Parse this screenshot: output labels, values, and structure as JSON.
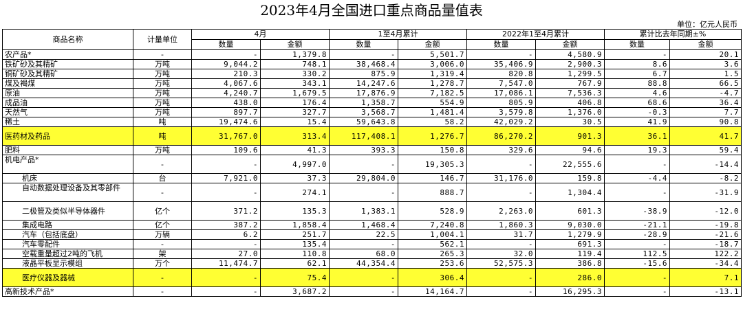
{
  "title": "2023年4月全国进口重点商品量值表",
  "unit": "单位：亿元人民币",
  "headers": {
    "name": "商品名称",
    "unit": "计量单位",
    "g1": "4月",
    "g2": "1至4月累计",
    "g3": "2022年1至4月累计",
    "g4": "累计比去年同期±%",
    "qty": "数量",
    "amt": "金额"
  },
  "rows": [
    {
      "name": "农产品*",
      "unit": "-",
      "q1": "-",
      "a1": "1,379.8",
      "q2": "-",
      "a2": "5,501.7",
      "q3": "-",
      "a3": "4,580.9",
      "q4": "-",
      "a4": "20.1"
    },
    {
      "name": "铁矿砂及其精矿",
      "unit": "万吨",
      "q1": "9,044.2",
      "a1": "748.1",
      "q2": "38,468.4",
      "a2": "3,006.0",
      "q3": "35,406.9",
      "a3": "2,900.3",
      "q4": "8.6",
      "a4": "3.6"
    },
    {
      "name": "铜矿砂及其精矿",
      "unit": "万吨",
      "q1": "210.3",
      "a1": "330.2",
      "q2": "875.9",
      "a2": "1,319.4",
      "q3": "820.8",
      "a3": "1,299.5",
      "q4": "6.7",
      "a4": "1.5"
    },
    {
      "name": "煤及褐煤",
      "unit": "万吨",
      "q1": "4,067.6",
      "a1": "343.1",
      "q2": "14,247.6",
      "a2": "1,278.7",
      "q3": "7,547.0",
      "a3": "767.9",
      "q4": "88.8",
      "a4": "66.5"
    },
    {
      "name": "原油",
      "unit": "万吨",
      "q1": "4,240.7",
      "a1": "1,679.5",
      "q2": "17,876.9",
      "a2": "7,182.5",
      "q3": "17,086.1",
      "a3": "7,536.3",
      "q4": "4.6",
      "a4": "-4.7"
    },
    {
      "name": "成品油",
      "unit": "万吨",
      "q1": "438.0",
      "a1": "176.4",
      "q2": "1,358.7",
      "a2": "554.9",
      "q3": "805.9",
      "a3": "406.8",
      "q4": "68.6",
      "a4": "36.4"
    },
    {
      "name": "天然气",
      "unit": "万吨",
      "q1": "897.7",
      "a1": "327.7",
      "q2": "3,568.7",
      "a2": "1,481.4",
      "q3": "3,579.8",
      "a3": "1,376.0",
      "q4": "-0.3",
      "a4": "7.7"
    },
    {
      "name": "稀土",
      "unit": "吨",
      "q1": "19,474.6",
      "a1": "15.4",
      "q2": "59,643.8",
      "a2": "58.2",
      "q3": "42,029.2",
      "a3": "30.5",
      "q4": "41.9",
      "a4": "90.8"
    },
    {
      "name": "医药材及药品",
      "unit": "吨",
      "q1": "31,767.0",
      "a1": "313.4",
      "q2": "117,408.1",
      "a2": "1,276.7",
      "q3": "86,270.2",
      "a3": "901.3",
      "q4": "36.1",
      "a4": "41.7"
    },
    {
      "name": "肥料",
      "unit": "万吨",
      "q1": "109.6",
      "a1": "41.3",
      "q2": "393.3",
      "a2": "150.8",
      "q3": "329.6",
      "a3": "94.6",
      "q4": "19.3",
      "a4": "59.4"
    },
    {
      "name": "机电产品*",
      "unit": "-",
      "q1": "-",
      "a1": "4,997.0",
      "q2": "-",
      "a2": "19,305.3",
      "q3": "-",
      "a3": "22,555.6",
      "q4": "-",
      "a4": "-14.4"
    },
    {
      "name": "机床",
      "unit": "台",
      "q1": "7,921.0",
      "a1": "37.3",
      "q2": "29,804.0",
      "a2": "146.7",
      "q3": "31,176.0",
      "a3": "159.8",
      "q4": "-4.4",
      "a4": "-8.2"
    },
    {
      "name": "自动数据处理设备及其零部件",
      "unit": "-",
      "q1": "-",
      "a1": "274.1",
      "q2": "-",
      "a2": "888.7",
      "q3": "-",
      "a3": "1,304.4",
      "q4": "-",
      "a4": "-31.9"
    },
    {
      "name": "二极管及类似半导体器件",
      "unit": "亿个",
      "q1": "371.2",
      "a1": "135.3",
      "q2": "1,383.1",
      "a2": "528.9",
      "q3": "2,263.0",
      "a3": "601.3",
      "q4": "-38.9",
      "a4": "-12.0"
    },
    {
      "name": "集成电路",
      "unit": "亿个",
      "q1": "387.2",
      "a1": "1,858.4",
      "q2": "1,468.4",
      "a2": "7,240.8",
      "q3": "1,860.3",
      "a3": "9,030.0",
      "q4": "-21.1",
      "a4": "-19.8"
    },
    {
      "name": "汽车（包括底盘）",
      "unit": "万辆",
      "q1": "6.2",
      "a1": "251.7",
      "q2": "22.5",
      "a2": "1,004.1",
      "q3": "31.7",
      "a3": "1,279.9",
      "q4": "-28.9",
      "a4": "-21.6"
    },
    {
      "name": "汽车零配件",
      "unit": "-",
      "q1": "-",
      "a1": "135.4",
      "q2": "-",
      "a2": "562.1",
      "q3": "-",
      "a3": "691.3",
      "q4": "-",
      "a4": "-18.7"
    },
    {
      "name": "空载重量超过2吨的飞机",
      "unit": "架",
      "q1": "27.0",
      "a1": "110.8",
      "q2": "68.0",
      "a2": "265.3",
      "q3": "32.0",
      "a3": "119.4",
      "q4": "112.5",
      "a4": "122.2"
    },
    {
      "name": "液晶平板显示模组",
      "unit": "万个",
      "q1": "11,474.7",
      "a1": "62.1",
      "q2": "44,354.4",
      "a2": "253.6",
      "q3": "52,575.3",
      "a3": "386.8",
      "q4": "-15.6",
      "a4": "-34.4"
    },
    {
      "name": "医疗仪器及器械",
      "unit": "-",
      "q1": "-",
      "a1": "75.4",
      "q2": "-",
      "a2": "306.4",
      "q3": "-",
      "a3": "286.0",
      "q4": "-",
      "a4": "7.1"
    },
    {
      "name": "高新技术产品*",
      "unit": "-",
      "q1": "-",
      "a1": "3,687.2",
      "q2": "-",
      "a2": "14,164.7",
      "q3": "-",
      "a3": "16,295.3",
      "q4": "-",
      "a4": "-13.1"
    }
  ],
  "colors": {
    "highlight": "#ffff33",
    "border": "#000000"
  }
}
